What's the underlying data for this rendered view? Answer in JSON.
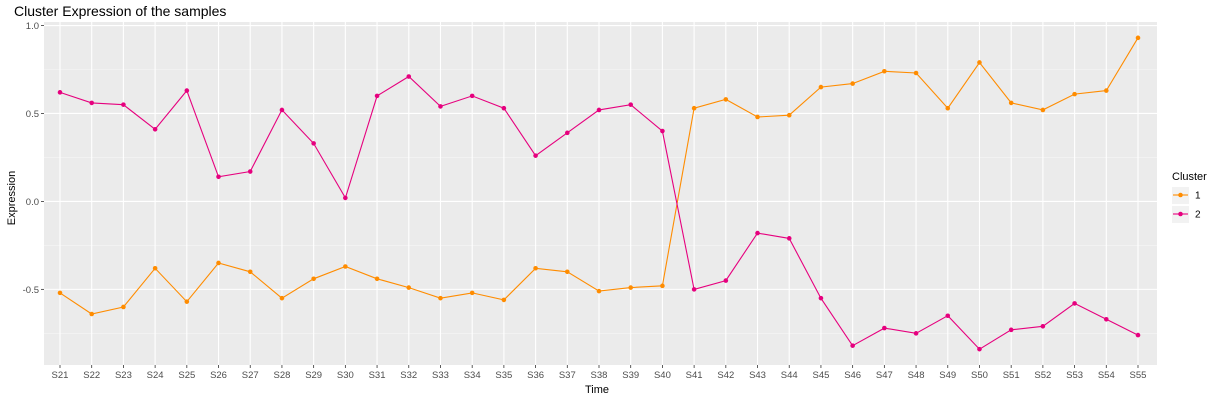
{
  "chart_data": {
    "type": "line",
    "title": "Cluster Expression of the samples",
    "xlabel": "Time",
    "ylabel": "Expression",
    "ylim": [
      -0.93,
      1.02
    ],
    "yticks": [
      1.0,
      0.5,
      0.0,
      -0.5
    ],
    "ytick_labels": [
      "1.0",
      "0.5",
      "0.0",
      "-0.5"
    ],
    "grid": true,
    "legend_position": "right",
    "legend_title": "Cluster",
    "categories": [
      "S21",
      "S22",
      "S23",
      "S24",
      "S25",
      "S26",
      "S27",
      "S28",
      "S29",
      "S30",
      "S31",
      "S32",
      "S33",
      "S34",
      "S35",
      "S36",
      "S37",
      "S38",
      "S39",
      "S40",
      "S41",
      "S42",
      "S43",
      "S44",
      "S45",
      "S46",
      "S47",
      "S48",
      "S49",
      "S50",
      "S51",
      "S52",
      "S53",
      "S54",
      "S55"
    ],
    "series": [
      {
        "name": "1",
        "color": "#FF8C00",
        "values": [
          -0.52,
          -0.64,
          -0.6,
          -0.38,
          -0.57,
          -0.35,
          -0.4,
          -0.55,
          -0.44,
          -0.37,
          -0.44,
          -0.49,
          -0.55,
          -0.52,
          -0.56,
          -0.38,
          -0.4,
          -0.51,
          -0.49,
          -0.48,
          0.53,
          0.58,
          0.48,
          0.49,
          0.65,
          0.67,
          0.74,
          0.73,
          0.53,
          0.79,
          0.56,
          0.52,
          0.61,
          0.63,
          0.93
        ]
      },
      {
        "name": "2",
        "color": "#E6007E",
        "values": [
          0.62,
          0.56,
          0.55,
          0.41,
          0.63,
          0.14,
          0.17,
          0.52,
          0.33,
          0.02,
          0.6,
          0.71,
          0.54,
          0.6,
          0.53,
          0.26,
          0.39,
          0.52,
          0.55,
          0.4,
          -0.5,
          -0.45,
          -0.18,
          -0.21,
          -0.55,
          -0.82,
          -0.72,
          -0.75,
          -0.65,
          -0.84,
          -0.73,
          -0.71,
          -0.58,
          -0.67,
          -0.76
        ]
      }
    ]
  }
}
